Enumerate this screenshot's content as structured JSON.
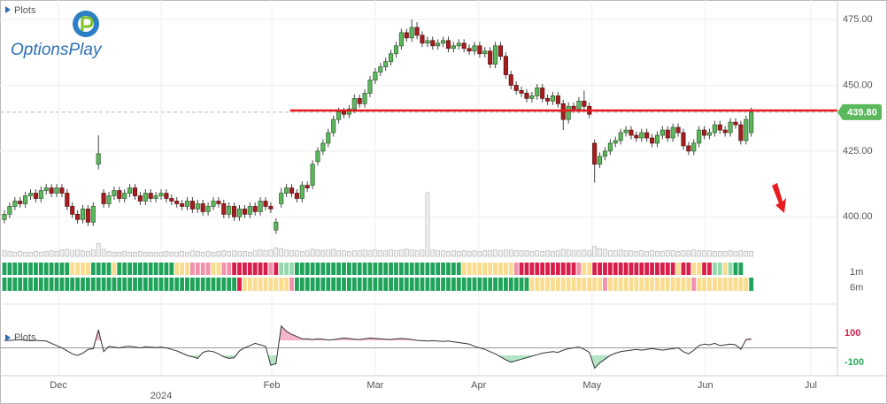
{
  "header": {
    "plots_label": "Plots",
    "logo": "OptionsPlay"
  },
  "chart_data": {
    "type": "candlestick",
    "xlim": [
      -0.85,
      159.5
    ],
    "xticks": [
      {
        "value": 10.34,
        "label": "Dec"
      },
      {
        "value": 51.2,
        "label": "Feb"
      },
      {
        "value": 71,
        "label": "Mar"
      },
      {
        "value": 90.8,
        "label": "Apr"
      },
      {
        "value": 112.5,
        "label": "May"
      },
      {
        "value": 134.2,
        "label": "Jun"
      },
      {
        "value": 154.4,
        "label": "Jul"
      }
    ],
    "year_marks": [
      {
        "value": 30,
        "label": "2024"
      }
    ],
    "ylim": [
      385,
      482.4
    ],
    "yticks": [
      {
        "value": 400,
        "label": "400.00"
      },
      {
        "value": 425,
        "label": "425.00"
      },
      {
        "value": 450,
        "label": "450.00"
      },
      {
        "value": 475,
        "label": "475.00"
      }
    ],
    "grid": true,
    "candles": {
      "up_color": "#5cb85c",
      "down_color": "#a51d1d",
      "open": [
        399,
        401,
        404,
        406,
        405,
        408,
        409,
        407,
        410,
        411,
        409,
        411,
        409,
        404,
        401,
        399,
        403,
        398,
        420,
        409,
        405,
        408,
        410,
        407,
        409,
        411,
        408,
        406,
        409,
        407,
        408,
        409,
        407,
        406,
        405,
        404,
        406,
        403,
        405,
        402,
        404,
        406,
        405,
        401,
        404,
        400,
        403,
        401,
        404,
        402,
        406,
        404,
        395,
        405,
        409,
        411,
        409,
        407,
        412,
        412,
        421,
        425,
        428,
        432,
        437,
        440,
        439,
        441,
        445,
        443,
        447,
        452,
        455,
        457,
        459,
        462,
        465,
        470,
        468,
        472,
        469,
        466,
        467,
        465,
        466,
        467,
        464,
        465,
        466,
        464,
        463,
        465,
        462,
        463,
        458,
        465,
        461,
        454,
        450,
        448,
        447,
        445,
        446,
        449,
        445,
        444,
        446,
        443,
        437,
        442,
        441,
        444,
        442,
        428,
        420,
        423,
        425,
        428,
        429,
        432,
        433,
        431,
        430,
        432,
        430,
        428,
        431,
        433,
        430,
        434,
        432,
        427,
        425,
        428,
        433,
        431,
        432,
        435,
        433,
        432,
        436,
        435,
        429,
        432
      ],
      "high": [
        402.5,
        405.5,
        407.5,
        407.5,
        409.5,
        410.5,
        410.5,
        411.5,
        412.5,
        412.5,
        412.5,
        412.5,
        410.5,
        405.5,
        402.5,
        404.5,
        404.5,
        405.5,
        431,
        410.5,
        409.5,
        411.5,
        411.5,
        410.5,
        412.5,
        412.5,
        409.5,
        410.5,
        410.5,
        409.5,
        410.5,
        410.5,
        408.5,
        407.5,
        406.5,
        407.5,
        407.5,
        406.5,
        406.5,
        405.5,
        407.5,
        407.5,
        406.5,
        405.5,
        405.5,
        404.5,
        404.5,
        405.5,
        405.5,
        407.5,
        407.5,
        405.5,
        399.5,
        411,
        412.5,
        412.5,
        410.5,
        413.5,
        413.5,
        421.5,
        426.5,
        429.5,
        433.5,
        438.5,
        441.5,
        441.5,
        442.5,
        446.5,
        446.5,
        448.5,
        453.5,
        456.5,
        458.5,
        460.5,
        463.5,
        466.5,
        471.5,
        471.5,
        475,
        474,
        470.5,
        468.5,
        468.5,
        467.5,
        468.5,
        468.5,
        466.5,
        467.5,
        467.5,
        465.5,
        466.5,
        466.5,
        464.5,
        464.5,
        466.5,
        466.5,
        462.5,
        455.5,
        451.5,
        449.5,
        448.5,
        447.5,
        450.5,
        450.5,
        446.5,
        447.5,
        447.5,
        444.5,
        443.5,
        443.5,
        445.5,
        448,
        443.5,
        429.5,
        424.5,
        426.5,
        429.5,
        430.5,
        433.5,
        434.5,
        434.5,
        432.5,
        433.5,
        433.5,
        431.5,
        432.5,
        434.5,
        434.5,
        435.5,
        435.5,
        433.5,
        428.5,
        429.5,
        434.5,
        434.5,
        433.5,
        436.5,
        436.5,
        434.5,
        437.5,
        437.5,
        436.5,
        438.5,
        441.5
      ],
      "low": [
        397.5,
        399.5,
        402.5,
        403.5,
        403.5,
        406.5,
        405.5,
        405.5,
        408.5,
        407.5,
        407.5,
        407.5,
        402.5,
        399.5,
        397.5,
        397.5,
        396.5,
        396.5,
        418,
        403.5,
        403.5,
        406.5,
        405.5,
        405.5,
        407.5,
        406.5,
        404.5,
        404.5,
        405.5,
        405.5,
        406.5,
        405.5,
        404.5,
        403.5,
        402.5,
        402.5,
        401.5,
        401.5,
        400.5,
        400.5,
        402.5,
        403.5,
        399.5,
        399.5,
        398.5,
        398.5,
        399.5,
        399.5,
        400.5,
        400.5,
        402.5,
        401.5,
        393.5,
        403.5,
        407.5,
        407.5,
        405.5,
        405.5,
        409.5,
        410.5,
        419.5,
        423.5,
        426.5,
        430.5,
        435.5,
        437.5,
        437.5,
        439.5,
        441.5,
        441.5,
        445.5,
        450.5,
        453.5,
        455.5,
        457.5,
        460.5,
        463.5,
        466.5,
        466.5,
        467.5,
        464.5,
        464.5,
        463.5,
        463.5,
        464.5,
        462.5,
        462.5,
        463.5,
        462.5,
        461.5,
        461.5,
        460.5,
        460.5,
        456.5,
        456.5,
        459.5,
        452.5,
        448.5,
        446.5,
        445.5,
        443.5,
        443.5,
        444.5,
        443.5,
        442.5,
        442.5,
        441.5,
        433,
        435.5,
        439.5,
        439.5,
        440.5,
        437.5,
        413,
        418.5,
        421.5,
        423.5,
        426.5,
        427.5,
        430.5,
        429.5,
        428.5,
        428.5,
        428.5,
        426.5,
        426.5,
        429.5,
        428.5,
        428.5,
        430.5,
        425.5,
        423.5,
        423.5,
        426.5,
        429.5,
        429.5,
        430.5,
        431.5,
        430.5,
        430.5,
        433.5,
        427.5,
        427.5,
        430.5
      ],
      "close": [
        401,
        404,
        406,
        405,
        408,
        409,
        407,
        410,
        411,
        409,
        411,
        409,
        404,
        401,
        399,
        403,
        398,
        404,
        424,
        405,
        408,
        410,
        407,
        409,
        411,
        408,
        406,
        409,
        407,
        408,
        409,
        407,
        406,
        405,
        404,
        406,
        403,
        405,
        402,
        404,
        406,
        405,
        401,
        404,
        400,
        403,
        401,
        404,
        402,
        406,
        404,
        403,
        398,
        409,
        411,
        409,
        407,
        412,
        411,
        420,
        425,
        428,
        432,
        437,
        440,
        439,
        441,
        445,
        443,
        447,
        452,
        455,
        457,
        459,
        462,
        465,
        470,
        468,
        472,
        469,
        466,
        467,
        465,
        466,
        467,
        464,
        465,
        466,
        464,
        463,
        465,
        462,
        463,
        458,
        465,
        461,
        454,
        450,
        448,
        447,
        445,
        446,
        449,
        445,
        444,
        446,
        443,
        437,
        442,
        441,
        444,
        442,
        439,
        420,
        423,
        425,
        428,
        429,
        432,
        433,
        431,
        430,
        432,
        430,
        428,
        431,
        433,
        430,
        434,
        432,
        427,
        425,
        428,
        433,
        431,
        432,
        435,
        433,
        432,
        436,
        435,
        429,
        437,
        439.8
      ]
    },
    "volume": {
      "ylim": [
        0,
        100
      ],
      "color": "#f2f2f2",
      "values": [
        8,
        7,
        6,
        7,
        6,
        6,
        7,
        6,
        7,
        8,
        7,
        9,
        10,
        8,
        9,
        8,
        7,
        9,
        18,
        10,
        7,
        6,
        6,
        7,
        6,
        6,
        7,
        6,
        6,
        6,
        6,
        7,
        6,
        6,
        7,
        6,
        8,
        7,
        6,
        7,
        6,
        7,
        8,
        7,
        8,
        7,
        7,
        6,
        8,
        9,
        8,
        9,
        12,
        11,
        9,
        8,
        8,
        7,
        8,
        10,
        9,
        8,
        9,
        10,
        8,
        8,
        7,
        8,
        8,
        9,
        8,
        9,
        8,
        8,
        9,
        8,
        9,
        10,
        9,
        8,
        9,
        90,
        9,
        8,
        8,
        7,
        8,
        7,
        8,
        7,
        8,
        7,
        8,
        8,
        9,
        8,
        9,
        9,
        8,
        8,
        8,
        7,
        8,
        7,
        8,
        7,
        8,
        10,
        9,
        8,
        8,
        9,
        8,
        14,
        11,
        10,
        8,
        8,
        9,
        8,
        8,
        7,
        8,
        7,
        8,
        7,
        7,
        8,
        8,
        7,
        8,
        8,
        9,
        8,
        8,
        8,
        7,
        7,
        7,
        8,
        7,
        8,
        7,
        7
      ]
    },
    "last_price": {
      "value": 439.8,
      "label": "439.80",
      "color": "#5cb85c"
    },
    "resistance": {
      "value": 440.4,
      "start": 54.7,
      "color": "#e8191f"
    },
    "heatmap": {
      "colors": {
        "G": "#1fa35a",
        "g": "#93d9ad",
        "Y": "#f9dc8f",
        "R": "#d81e4b",
        "P": "#f191ac"
      },
      "rows": [
        {
          "name": "1m",
          "cells": "GGGGGGGGGGGGGYYYYGGGGYGGGGGGGGGGGYYYPPPPYYPPRRRRRRRPRgggGGGGGGGGGGGGGGGGGGGGGGGGGGGGGGGGYYYYYYYYYYPRRRRRRRRRRRPYYRRRRRRRRRRRRRRRRYRRYYRRggYgGG"
        },
        {
          "name": "6m",
          "cells": "GGGGGGGGGGGGGGGGGGGGGGGGGGGGGGGGGGGGGGGGGGGGGRYYYYYYYYYPGGGGGGGGGGGGGGGGGGGGGGGGGGGGGGGGGGGGGGGGGGGGGYYYYYYYYYYYYYYPYYYYYYYYYYYYYYYYPYYYYYYYYYYG"
        }
      ]
    },
    "indicator": {
      "name": "Plots",
      "ylim": [
        -370,
        370
      ],
      "yticks": [
        100,
        -100
      ],
      "tick_colors": [
        "#d6204a",
        "#27a85a"
      ],
      "upper": 100,
      "lower": -100,
      "upper_color": "#f4b6c8",
      "lower_color": "#b4e3c6",
      "values": [
        95,
        100,
        105,
        110,
        100,
        95,
        100,
        95,
        90,
        60,
        30,
        0,
        -40,
        -80,
        -100,
        -70,
        -20,
        -10,
        240,
        -50,
        20,
        10,
        0,
        15,
        20,
        10,
        0,
        15,
        10,
        5,
        10,
        0,
        -20,
        -40,
        -70,
        -100,
        -120,
        -140,
        -60,
        -40,
        -50,
        -80,
        -120,
        -140,
        -130,
        -40,
        0,
        30,
        60,
        40,
        20,
        -230,
        -210,
        290,
        220,
        180,
        150,
        120,
        120,
        110,
        120,
        115,
        105,
        110,
        120,
        130,
        125,
        115,
        110,
        120,
        130,
        125,
        120,
        115,
        110,
        120,
        125,
        120,
        110,
        100,
        95,
        90,
        95,
        90,
        85,
        90,
        80,
        70,
        60,
        50,
        20,
        0,
        -20,
        -50,
        -80,
        -120,
        -160,
        -190,
        -170,
        -150,
        -130,
        -110,
        -90,
        -70,
        -60,
        -50,
        -60,
        -30,
        -10,
        0,
        10,
        -20,
        -60,
        -270,
        -200,
        -150,
        -100,
        -70,
        -50,
        -40,
        -30,
        -20,
        -30,
        -20,
        -10,
        -20,
        -30,
        -20,
        -10,
        0,
        -50,
        -80,
        -30,
        30,
        50,
        40,
        60,
        30,
        40,
        50,
        40,
        -20,
        110,
        120
      ]
    }
  }
}
